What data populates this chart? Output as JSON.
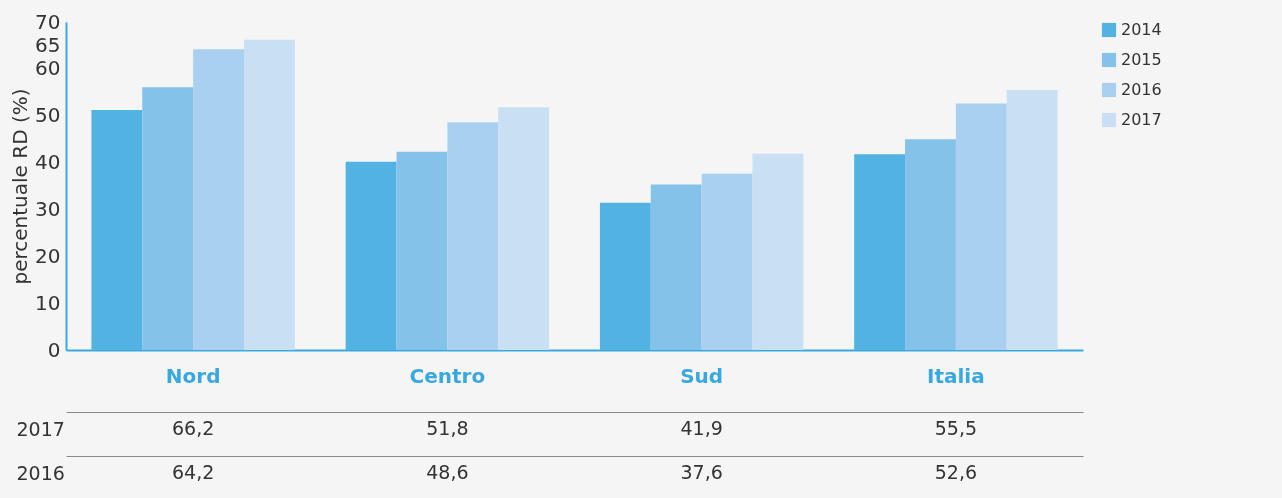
{
  "chart_data": {
    "type": "bar",
    "ylabel": "percentuale RD (%)",
    "categories": [
      "Nord",
      "Centro",
      "Sud",
      "Italia"
    ],
    "series": [
      {
        "name": "2014",
        "color": "#52b3e3",
        "values": [
          51.2,
          40.2,
          31.4,
          41.8
        ]
      },
      {
        "name": "2015",
        "color": "#85c2ea",
        "values": [
          56.1,
          42.3,
          35.3,
          45.0
        ]
      },
      {
        "name": "2016",
        "color": "#a9d0f0",
        "values": [
          64.2,
          48.6,
          37.6,
          52.6
        ],
        "value_labels": [
          "64,2",
          "48,6",
          "37,6",
          "52,6"
        ]
      },
      {
        "name": "2017",
        "color": "#c8dff4",
        "values": [
          66.2,
          51.8,
          41.9,
          55.5
        ],
        "value_labels": [
          "66,2",
          "51,8",
          "41,9",
          "55,5"
        ]
      }
    ],
    "ylim": [
      0,
      70
    ],
    "yticks": [
      0,
      10,
      20,
      30,
      40,
      50,
      60,
      65,
      70
    ],
    "grid": false,
    "legend": "right"
  }
}
